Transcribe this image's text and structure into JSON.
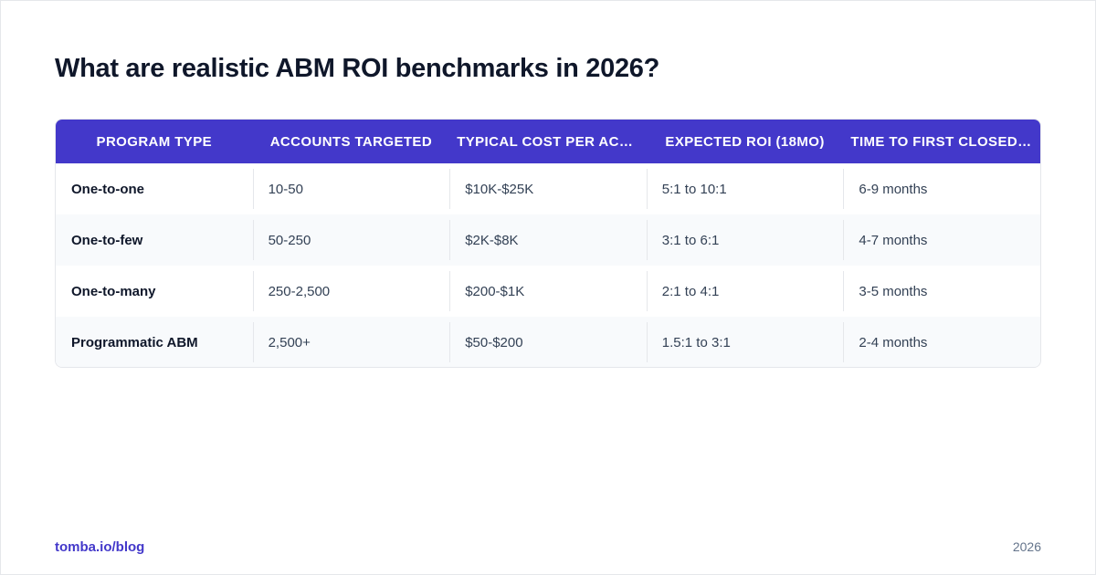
{
  "title": "What are realistic ABM ROI benchmarks in 2026?",
  "table": {
    "headers": [
      "Program Type",
      "Accounts Targeted",
      "Typical Cost Per Account",
      "Expected ROI (18mo)",
      "Time to First Closed Deal"
    ],
    "rows": [
      [
        "One-to-one",
        "10-50",
        "$10K-$25K",
        "5:1 to 10:1",
        "6-9 months"
      ],
      [
        "One-to-few",
        "50-250",
        "$2K-$8K",
        "3:1 to 6:1",
        "4-7 months"
      ],
      [
        "One-to-many",
        "250-2,500",
        "$200-$1K",
        "2:1 to 4:1",
        "3-5 months"
      ],
      [
        "Programmatic ABM",
        "2,500+",
        "$50-$200",
        "1.5:1 to 3:1",
        "2-4 months"
      ]
    ]
  },
  "footer": {
    "source": "tomba.io/blog",
    "year": "2026"
  },
  "colors": {
    "header_bg": "#4338ca",
    "accent": "#4338ca",
    "alt_row_bg": "#f8fafc"
  }
}
